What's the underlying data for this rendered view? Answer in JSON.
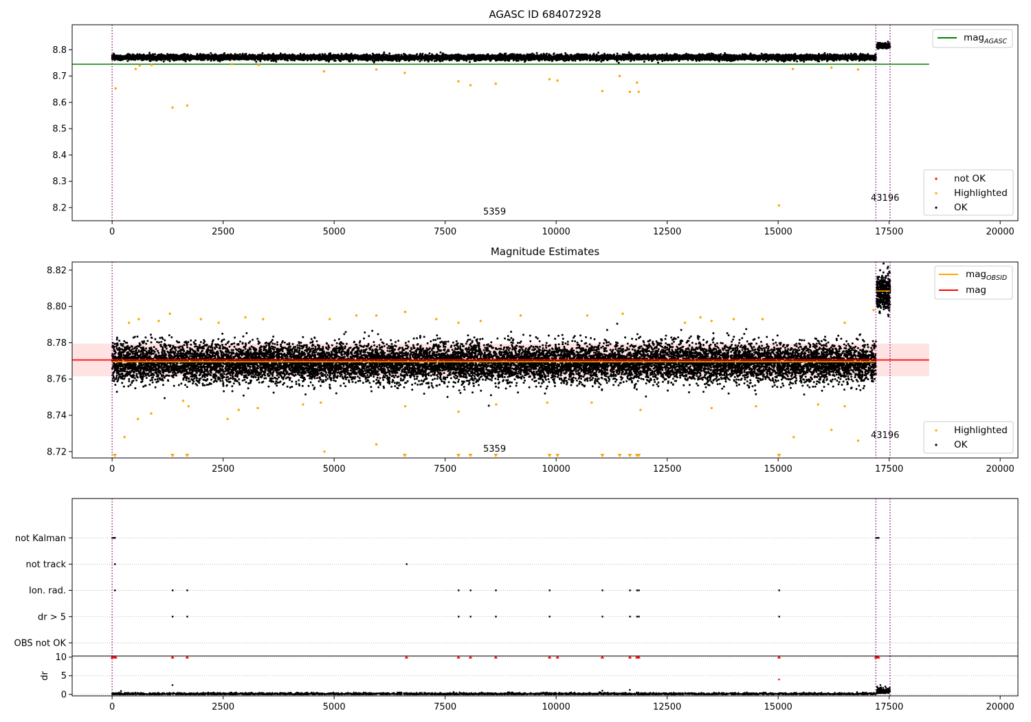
{
  "chart_data": [
    {
      "type": "scatter",
      "title": "AGASC ID 684072928",
      "xlim": [
        -900,
        20400
      ],
      "ylim": [
        8.15,
        8.895
      ],
      "xticks": [
        0,
        2500,
        5000,
        7500,
        10000,
        12500,
        15000,
        17500,
        20000
      ],
      "yticks": [
        8.2,
        8.3,
        8.4,
        8.5,
        8.6,
        8.7,
        8.8
      ],
      "vlines": [
        0,
        17200,
        17520
      ],
      "ok_band": {
        "x_start": 0,
        "x_end": 17200,
        "center": 8.771,
        "spread": 0.008
      },
      "ok_band_late": {
        "x_start": 17220,
        "x_end": 17520,
        "center": 8.815,
        "spread": 0.008
      },
      "hline": {
        "y": 8.745,
        "x_end": 18400,
        "color": "#008000"
      },
      "highlighted": [
        [
          80,
          8.653
        ],
        [
          530,
          8.727
        ],
        [
          620,
          8.74
        ],
        [
          890,
          8.742
        ],
        [
          1360,
          8.58
        ],
        [
          1690,
          8.588
        ],
        [
          2700,
          8.745
        ],
        [
          3300,
          8.742
        ],
        [
          4770,
          8.718
        ],
        [
          5950,
          8.725
        ],
        [
          6590,
          8.712
        ],
        [
          7800,
          8.68
        ],
        [
          8070,
          8.665
        ],
        [
          8640,
          8.671
        ],
        [
          9850,
          8.688
        ],
        [
          10030,
          8.683
        ],
        [
          11040,
          8.643
        ],
        [
          11430,
          8.7
        ],
        [
          11660,
          8.64
        ],
        [
          11820,
          8.675
        ],
        [
          11860,
          8.64
        ],
        [
          15020,
          8.208
        ],
        [
          15330,
          8.727
        ],
        [
          16200,
          8.732
        ],
        [
          16800,
          8.725
        ]
      ],
      "annotations": [
        {
          "x": 8300,
          "y": 8.165,
          "text": "5359"
        },
        {
          "x": 16920,
          "y": 8.218,
          "text": "43196"
        }
      ],
      "legend_top": [
        {
          "label": "mag",
          "sub": "AGASC",
          "color": "#008000"
        }
      ],
      "legend_bottom": [
        {
          "label": "not OK",
          "color": "#ff0000"
        },
        {
          "label": "Highlighted",
          "color": "#ffa500"
        },
        {
          "label": "OK",
          "color": "#000000"
        }
      ]
    },
    {
      "type": "scatter",
      "title": "Magnitude Estimates",
      "xlim": [
        -900,
        20400
      ],
      "ylim": [
        8.7165,
        8.8245
      ],
      "xticks": [
        0,
        2500,
        5000,
        7500,
        10000,
        12500,
        15000,
        17500,
        20000
      ],
      "yticks": [
        8.72,
        8.74,
        8.76,
        8.78,
        8.8,
        8.82
      ],
      "vlines": [
        0,
        17200,
        17520
      ],
      "ok_band": {
        "x_start": 0,
        "x_end": 17200,
        "center": 8.769,
        "spread": 0.0085
      },
      "ok_band_late": {
        "x_start": 17220,
        "x_end": 17520,
        "center": 8.808,
        "spread": 0.008
      },
      "shaded_band": {
        "y0": 8.7615,
        "y1": 8.7795,
        "x_end": 18400,
        "color": "#ffd8d8"
      },
      "hlines": [
        {
          "y": 8.7705,
          "x_start": -900,
          "x_end": 18400,
          "color": "#ff0000"
        },
        {
          "y": 8.7695,
          "x_start": 0,
          "x_end": 17200,
          "color": "#ffa500"
        },
        {
          "y": 8.8085,
          "x_start": 17200,
          "x_end": 17520,
          "color": "#ffa500"
        }
      ],
      "highlighted": [
        [
          380,
          8.791
        ],
        [
          600,
          8.793
        ],
        [
          1050,
          8.792
        ],
        [
          1300,
          8.796
        ],
        [
          2000,
          8.793
        ],
        [
          2400,
          8.791
        ],
        [
          3000,
          8.794
        ],
        [
          3400,
          8.793
        ],
        [
          4900,
          8.793
        ],
        [
          5500,
          8.795
        ],
        [
          5950,
          8.795
        ],
        [
          6600,
          8.797
        ],
        [
          7300,
          8.793
        ],
        [
          7800,
          8.791
        ],
        [
          8300,
          8.792
        ],
        [
          9200,
          8.795
        ],
        [
          10700,
          8.795
        ],
        [
          11500,
          8.796
        ],
        [
          12900,
          8.791
        ],
        [
          13250,
          8.794
        ],
        [
          13500,
          8.792
        ],
        [
          14000,
          8.793
        ],
        [
          14650,
          8.793
        ],
        [
          16500,
          8.791
        ],
        [
          17150,
          8.798
        ],
        [
          280,
          8.728
        ],
        [
          580,
          8.738
        ],
        [
          880,
          8.741
        ],
        [
          1600,
          8.748
        ],
        [
          1720,
          8.745
        ],
        [
          2600,
          8.738
        ],
        [
          2850,
          8.743
        ],
        [
          3280,
          8.744
        ],
        [
          4300,
          8.746
        ],
        [
          4700,
          8.747
        ],
        [
          4780,
          8.72
        ],
        [
          5950,
          8.724
        ],
        [
          6600,
          8.745
        ],
        [
          7800,
          8.742
        ],
        [
          8650,
          8.746
        ],
        [
          9800,
          8.747
        ],
        [
          10800,
          8.747
        ],
        [
          11900,
          8.743
        ],
        [
          13500,
          8.744
        ],
        [
          14500,
          8.745
        ],
        [
          15350,
          8.728
        ],
        [
          15900,
          8.746
        ],
        [
          16200,
          8.732
        ],
        [
          16500,
          8.745
        ],
        [
          16800,
          8.726
        ]
      ],
      "low_markers": [
        60,
        1360,
        1690,
        6590,
        7800,
        8070,
        8640,
        9850,
        10030,
        11040,
        11430,
        11660,
        11820,
        11860,
        15020
      ],
      "annotations": [
        {
          "x": 8300,
          "y": 8.7205,
          "text": "5359"
        },
        {
          "x": 16920,
          "y": 8.7275,
          "text": "43196"
        }
      ],
      "legend_top": [
        {
          "label": "mag",
          "sub": "OBSID",
          "color": "#ffa500"
        },
        {
          "label": "mag",
          "sub": "",
          "color": "#ff0000"
        }
      ],
      "legend_bottom": [
        {
          "label": "Highlighted",
          "color": "#ffa500"
        },
        {
          "label": "OK",
          "color": "#000000"
        }
      ]
    },
    {
      "type": "scatter",
      "title": "",
      "xlim": [
        -900,
        20400
      ],
      "ylim": [
        -0.5,
        5.5
      ],
      "categories": [
        "not Kalman",
        "not track",
        "Ion. rad.",
        "dr > 5",
        "OBS not OK"
      ],
      "vlines": [
        0,
        17200,
        17520
      ],
      "flags": {
        "not Kalman": [
          0,
          30,
          60,
          17200,
          17230,
          17260
        ],
        "not track": [
          60,
          6630
        ],
        "Ion. rad.": [
          60,
          1360,
          1690,
          7800,
          8070,
          8640,
          9850,
          11040,
          11660,
          11820,
          11860,
          15020
        ],
        "dr > 5": [
          1360,
          1690,
          7800,
          8070,
          8640,
          9850,
          11040,
          11660,
          11820,
          11860,
          15020
        ],
        "OBS not OK": []
      }
    },
    {
      "type": "scatter",
      "title": "",
      "xlim": [
        -900,
        20400
      ],
      "ylim": [
        -0.4,
        10.3
      ],
      "yticks": [
        0,
        5,
        10
      ],
      "ylabel": "dr",
      "xticks": [
        0,
        2500,
        5000,
        7500,
        10000,
        12500,
        15000,
        17500,
        20000
      ],
      "vlines": [
        0,
        17200,
        17520
      ],
      "clipped_markers": [
        0,
        40,
        80,
        1360,
        1690,
        6630,
        7800,
        8070,
        8640,
        9850,
        10030,
        11040,
        11660,
        11820,
        11860,
        15020,
        17200,
        17230,
        17260
      ],
      "extra_points": [
        [
          1360,
          2.5
        ],
        [
          15020,
          4.0
        ],
        [
          11040,
          1.0
        ],
        [
          11660,
          1.2
        ],
        [
          200,
          0.9
        ]
      ]
    }
  ]
}
